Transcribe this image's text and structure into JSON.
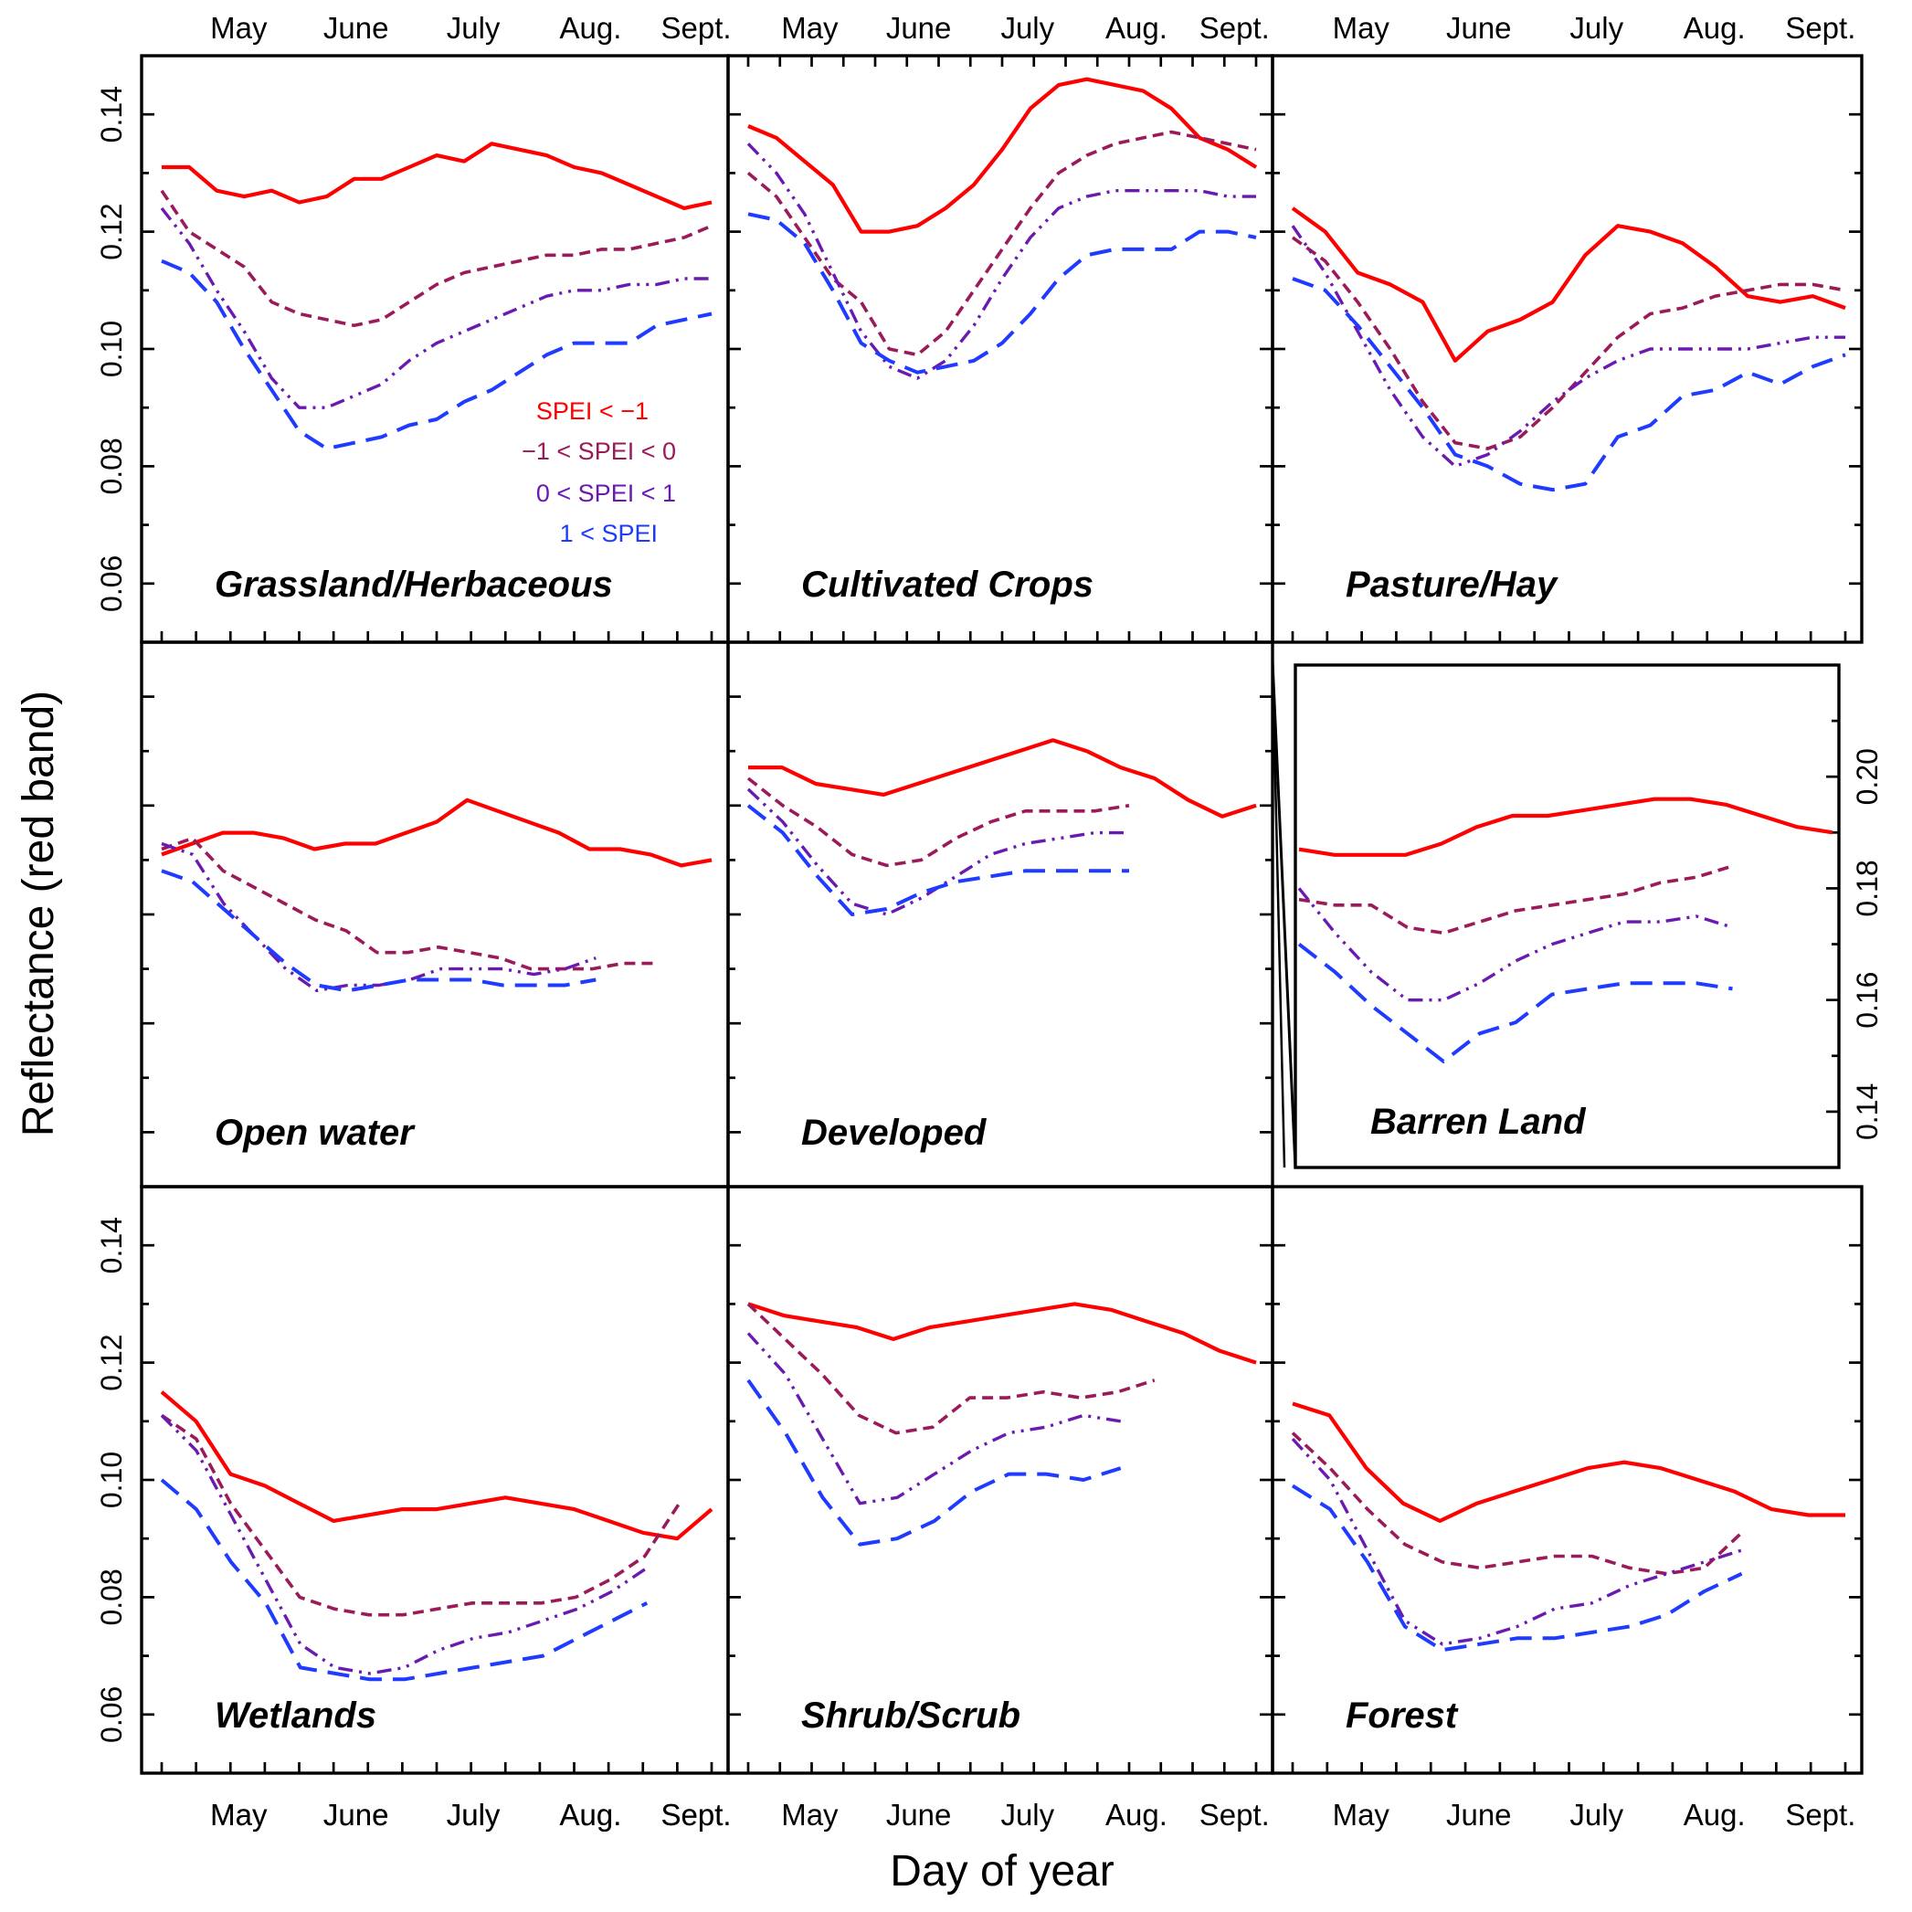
{
  "figure": {
    "ylabel": "Reflectance (red band)",
    "xlabel": "Day of year"
  },
  "colors": {
    "SPEI < −1": "#ff0000",
    "−1 < SPEI <  0": "#9b1a5a",
    "0 < SPEI <  1": "#6a1ab0",
    "1 < SPEI": "#1f3bff"
  },
  "legend": [
    "SPEI < −1",
    "−1 < SPEI <  0",
    "0 < SPEI <  1",
    "1 < SPEI"
  ],
  "chart_data": [
    {
      "type": "line",
      "title": "Grassland/Herbaceous",
      "months": [
        "May",
        "June",
        "July",
        "Aug.",
        "Sept."
      ],
      "ylim": [
        0.05,
        0.15
      ],
      "yticks": [
        "0.06",
        "0.08",
        "0.10",
        "0.12",
        "0.14"
      ],
      "series": [
        {
          "name": "SPEI < −1",
          "values": [
            0.131,
            0.131,
            0.127,
            0.126,
            0.127,
            0.125,
            0.126,
            0.129,
            0.129,
            0.131,
            0.133,
            0.132,
            0.135,
            0.134,
            0.133,
            0.131,
            0.13,
            0.128,
            0.126,
            0.124,
            0.125
          ]
        },
        {
          "name": "−1 < SPEI <  0",
          "values": [
            0.127,
            0.12,
            0.117,
            0.114,
            0.108,
            0.106,
            0.105,
            0.104,
            0.105,
            0.108,
            0.111,
            0.113,
            0.114,
            0.115,
            0.116,
            0.116,
            0.117,
            0.117,
            0.118,
            0.119,
            0.121
          ]
        },
        {
          "name": "0 < SPEI <  1",
          "values": [
            0.124,
            0.118,
            0.11,
            0.103,
            0.095,
            0.09,
            0.09,
            0.092,
            0.094,
            0.098,
            0.101,
            0.103,
            0.105,
            0.107,
            0.109,
            0.11,
            0.11,
            0.111,
            0.111,
            0.112,
            0.112
          ]
        },
        {
          "name": "1 < SPEI",
          "values": [
            0.115,
            0.113,
            0.108,
            0.1,
            0.093,
            0.086,
            0.083,
            0.084,
            0.085,
            0.087,
            0.088,
            0.091,
            0.093,
            0.096,
            0.099,
            0.101,
            0.101,
            0.101,
            0.104,
            0.105,
            0.106
          ]
        }
      ]
    },
    {
      "type": "line",
      "title": "Cultivated Crops",
      "months": [
        "May",
        "June",
        "July",
        "Aug.",
        "Sept."
      ],
      "ylim": [
        0.05,
        0.15
      ],
      "yticks": [],
      "series": [
        {
          "name": "SPEI < −1",
          "values": [
            0.138,
            0.136,
            0.132,
            0.128,
            0.12,
            0.12,
            0.121,
            0.124,
            0.128,
            0.134,
            0.141,
            0.145,
            0.146,
            0.145,
            0.144,
            0.141,
            0.136,
            0.134,
            0.131
          ]
        },
        {
          "name": "−1 < SPEI <  0",
          "values": [
            0.13,
            0.126,
            0.119,
            0.112,
            0.108,
            0.1,
            0.099,
            0.103,
            0.11,
            0.117,
            0.124,
            0.13,
            0.133,
            0.135,
            0.136,
            0.137,
            0.136,
            0.135,
            0.134
          ]
        },
        {
          "name": "0 < SPEI <  1",
          "values": [
            0.135,
            0.13,
            0.123,
            0.113,
            0.103,
            0.097,
            0.095,
            0.098,
            0.104,
            0.112,
            0.119,
            0.124,
            0.126,
            0.127,
            0.127,
            0.127,
            0.127,
            0.126,
            0.126
          ]
        },
        {
          "name": "1 < SPEI",
          "values": [
            0.123,
            0.122,
            0.118,
            0.11,
            0.101,
            0.098,
            0.096,
            0.097,
            0.098,
            0.101,
            0.106,
            0.112,
            0.116,
            0.117,
            0.117,
            0.117,
            0.12,
            0.12,
            0.119
          ]
        }
      ]
    },
    {
      "type": "line",
      "title": "Pasture/Hay",
      "months": [
        "May",
        "June",
        "July",
        "Aug.",
        "Sept."
      ],
      "ylim": [
        0.05,
        0.15
      ],
      "yticks": [],
      "series": [
        {
          "name": "SPEI < −1",
          "values": [
            0.124,
            0.12,
            0.113,
            0.111,
            0.108,
            0.098,
            0.103,
            0.105,
            0.108,
            0.116,
            0.121,
            0.12,
            0.118,
            0.114,
            0.109,
            0.108,
            0.109,
            0.107
          ]
        },
        {
          "name": "−1 < SPEI <  0",
          "values": [
            0.119,
            0.115,
            0.108,
            0.1,
            0.091,
            0.084,
            0.083,
            0.085,
            0.09,
            0.096,
            0.102,
            0.106,
            0.107,
            0.109,
            0.11,
            0.111,
            0.111,
            0.11
          ]
        },
        {
          "name": "0 < SPEI <  1",
          "values": [
            0.121,
            0.113,
            0.103,
            0.093,
            0.085,
            0.08,
            0.082,
            0.086,
            0.091,
            0.095,
            0.098,
            0.1,
            0.1,
            0.1,
            0.1,
            0.101,
            0.102,
            0.102
          ]
        },
        {
          "name": "1 < SPEI",
          "values": [
            0.112,
            0.11,
            0.104,
            0.097,
            0.09,
            0.082,
            0.08,
            0.077,
            0.076,
            0.077,
            0.085,
            0.087,
            0.092,
            0.093,
            0.096,
            0.094,
            0.097,
            0.099
          ]
        }
      ]
    },
    {
      "type": "line",
      "title": "Open water",
      "months": [
        "May",
        "June",
        "July",
        "Aug.",
        "Sept."
      ],
      "ylim": [
        0.05,
        0.15
      ],
      "yticks": [],
      "series": [
        {
          "name": "SPEI < −1",
          "values": [
            0.111,
            0.113,
            0.115,
            0.115,
            0.114,
            0.112,
            0.113,
            0.113,
            0.115,
            0.117,
            0.121,
            0.119,
            0.117,
            0.115,
            0.112,
            0.112,
            0.111,
            0.109,
            0.11
          ]
        },
        {
          "name": "−1 < SPEI <  0",
          "values": [
            0.112,
            0.114,
            0.108,
            0.105,
            0.102,
            0.099,
            0.097,
            0.093,
            0.093,
            0.094,
            0.093,
            0.092,
            0.09,
            0.09,
            0.09,
            0.091,
            0.091
          ]
        },
        {
          "name": "0 < SPEI <  1",
          "values": [
            0.113,
            0.111,
            0.102,
            0.096,
            0.09,
            0.086,
            0.087,
            0.087,
            0.088,
            0.09,
            0.09,
            0.09,
            0.089,
            0.09,
            0.092
          ]
        },
        {
          "name": "1 < SPEI",
          "values": [
            0.108,
            0.106,
            0.101,
            0.096,
            0.091,
            0.087,
            0.086,
            0.087,
            0.088,
            0.088,
            0.088,
            0.087,
            0.087,
            0.087,
            0.088
          ]
        }
      ]
    },
    {
      "type": "line",
      "title": "Developed",
      "months": [
        "May",
        "June",
        "July",
        "Aug.",
        "Sept."
      ],
      "ylim": [
        0.05,
        0.15
      ],
      "yticks": [],
      "series": [
        {
          "name": "SPEI < −1",
          "values": [
            0.127,
            0.127,
            0.124,
            0.123,
            0.122,
            0.124,
            0.126,
            0.128,
            0.13,
            0.132,
            0.13,
            0.127,
            0.125,
            0.121,
            0.118,
            0.12
          ]
        },
        {
          "name": "−1 < SPEI <  0",
          "values": [
            0.125,
            0.12,
            0.116,
            0.111,
            0.109,
            0.11,
            0.114,
            0.117,
            0.119,
            0.119,
            0.119,
            0.12
          ]
        },
        {
          "name": "0 < SPEI <  1",
          "values": [
            0.123,
            0.117,
            0.109,
            0.102,
            0.1,
            0.103,
            0.107,
            0.111,
            0.113,
            0.114,
            0.115,
            0.115
          ]
        },
        {
          "name": "1 < SPEI",
          "values": [
            0.12,
            0.115,
            0.107,
            0.1,
            0.101,
            0.104,
            0.106,
            0.107,
            0.108,
            0.108,
            0.108,
            0.108
          ]
        }
      ]
    },
    {
      "type": "line",
      "title": "Barren Land",
      "months": [],
      "ylim": [
        0.13,
        0.22
      ],
      "yticks": [
        "0.14",
        "0.16",
        "0.18",
        "0.20"
      ],
      "ytick_side": "right",
      "series": [
        {
          "name": "SPEI < −1",
          "values": [
            0.187,
            0.186,
            0.186,
            0.186,
            0.188,
            0.191,
            0.193,
            0.193,
            0.194,
            0.195,
            0.196,
            0.196,
            0.195,
            0.193,
            0.191,
            0.19
          ]
        },
        {
          "name": "−1 < SPEI <  0",
          "values": [
            0.178,
            0.177,
            0.177,
            0.173,
            0.172,
            0.174,
            0.176,
            0.177,
            0.178,
            0.179,
            0.181,
            0.182,
            0.184
          ]
        },
        {
          "name": "0 < SPEI <  1",
          "values": [
            0.18,
            0.172,
            0.165,
            0.16,
            0.16,
            0.163,
            0.167,
            0.17,
            0.172,
            0.174,
            0.174,
            0.175,
            0.173
          ]
        },
        {
          "name": "1 < SPEI",
          "values": [
            0.17,
            0.165,
            0.159,
            0.154,
            0.149,
            0.154,
            0.156,
            0.161,
            0.162,
            0.163,
            0.163,
            0.163,
            0.162
          ]
        }
      ]
    },
    {
      "type": "line",
      "title": "Wetlands",
      "months": [
        "May",
        "June",
        "July",
        "Aug.",
        "Sept."
      ],
      "ylim": [
        0.05,
        0.15
      ],
      "yticks": [
        "0.06",
        "0.08",
        "0.10",
        "0.12",
        "0.14"
      ],
      "series": [
        {
          "name": "SPEI < −1",
          "values": [
            0.115,
            0.11,
            0.101,
            0.099,
            0.096,
            0.093,
            0.094,
            0.095,
            0.095,
            0.096,
            0.097,
            0.096,
            0.095,
            0.093,
            0.091,
            0.09,
            0.095
          ]
        },
        {
          "name": "−1 < SPEI <  0",
          "values": [
            0.111,
            0.107,
            0.096,
            0.088,
            0.08,
            0.078,
            0.077,
            0.077,
            0.078,
            0.079,
            0.079,
            0.079,
            0.08,
            0.083,
            0.087,
            0.096
          ]
        },
        {
          "name": "0 < SPEI <  1",
          "values": [
            0.111,
            0.105,
            0.094,
            0.083,
            0.072,
            0.068,
            0.067,
            0.068,
            0.071,
            0.073,
            0.074,
            0.076,
            0.078,
            0.081,
            0.085
          ]
        },
        {
          "name": "1 < SPEI",
          "values": [
            0.1,
            0.095,
            0.086,
            0.079,
            0.068,
            0.067,
            0.066,
            0.066,
            0.067,
            0.068,
            0.069,
            0.07,
            0.073,
            0.076,
            0.079
          ]
        }
      ]
    },
    {
      "type": "line",
      "title": "Shrub/Scrub",
      "months": [],
      "ylim": [
        0.05,
        0.15
      ],
      "yticks": [],
      "series": [
        {
          "name": "SPEI < −1",
          "values": [
            0.13,
            0.128,
            0.127,
            0.126,
            0.124,
            0.126,
            0.127,
            0.128,
            0.129,
            0.13,
            0.129,
            0.127,
            0.125,
            0.122,
            0.12
          ]
        },
        {
          "name": "−1 < SPEI <  0",
          "values": [
            0.13,
            0.124,
            0.118,
            0.111,
            0.108,
            0.109,
            0.114,
            0.114,
            0.115,
            0.114,
            0.115,
            0.117
          ]
        },
        {
          "name": "0 < SPEI <  1",
          "values": [
            0.125,
            0.118,
            0.107,
            0.096,
            0.097,
            0.101,
            0.105,
            0.108,
            0.109,
            0.111,
            0.11
          ]
        },
        {
          "name": "1 < SPEI",
          "values": [
            0.117,
            0.108,
            0.097,
            0.089,
            0.09,
            0.093,
            0.098,
            0.101,
            0.101,
            0.1,
            0.102
          ]
        }
      ]
    },
    {
      "type": "line",
      "title": "Forest",
      "months": [
        "May",
        "June",
        "July",
        "Aug.",
        "Sept."
      ],
      "ylim": [
        0.05,
        0.15
      ],
      "yticks": [],
      "series": [
        {
          "name": "SPEI < −1",
          "values": [
            0.113,
            0.111,
            0.102,
            0.096,
            0.093,
            0.096,
            0.098,
            0.1,
            0.102,
            0.103,
            0.102,
            0.1,
            0.098,
            0.095,
            0.094,
            0.094
          ]
        },
        {
          "name": "−1 < SPEI <  0",
          "values": [
            0.108,
            0.102,
            0.095,
            0.089,
            0.086,
            0.085,
            0.086,
            0.087,
            0.087,
            0.085,
            0.084,
            0.085,
            0.091
          ]
        },
        {
          "name": "0 < SPEI <  1",
          "values": [
            0.107,
            0.1,
            0.088,
            0.076,
            0.072,
            0.073,
            0.075,
            0.078,
            0.079,
            0.082,
            0.084,
            0.086,
            0.088
          ]
        },
        {
          "name": "1 < SPEI",
          "values": [
            0.099,
            0.095,
            0.086,
            0.075,
            0.071,
            0.072,
            0.073,
            0.073,
            0.074,
            0.075,
            0.077,
            0.081,
            0.084
          ]
        }
      ]
    }
  ]
}
